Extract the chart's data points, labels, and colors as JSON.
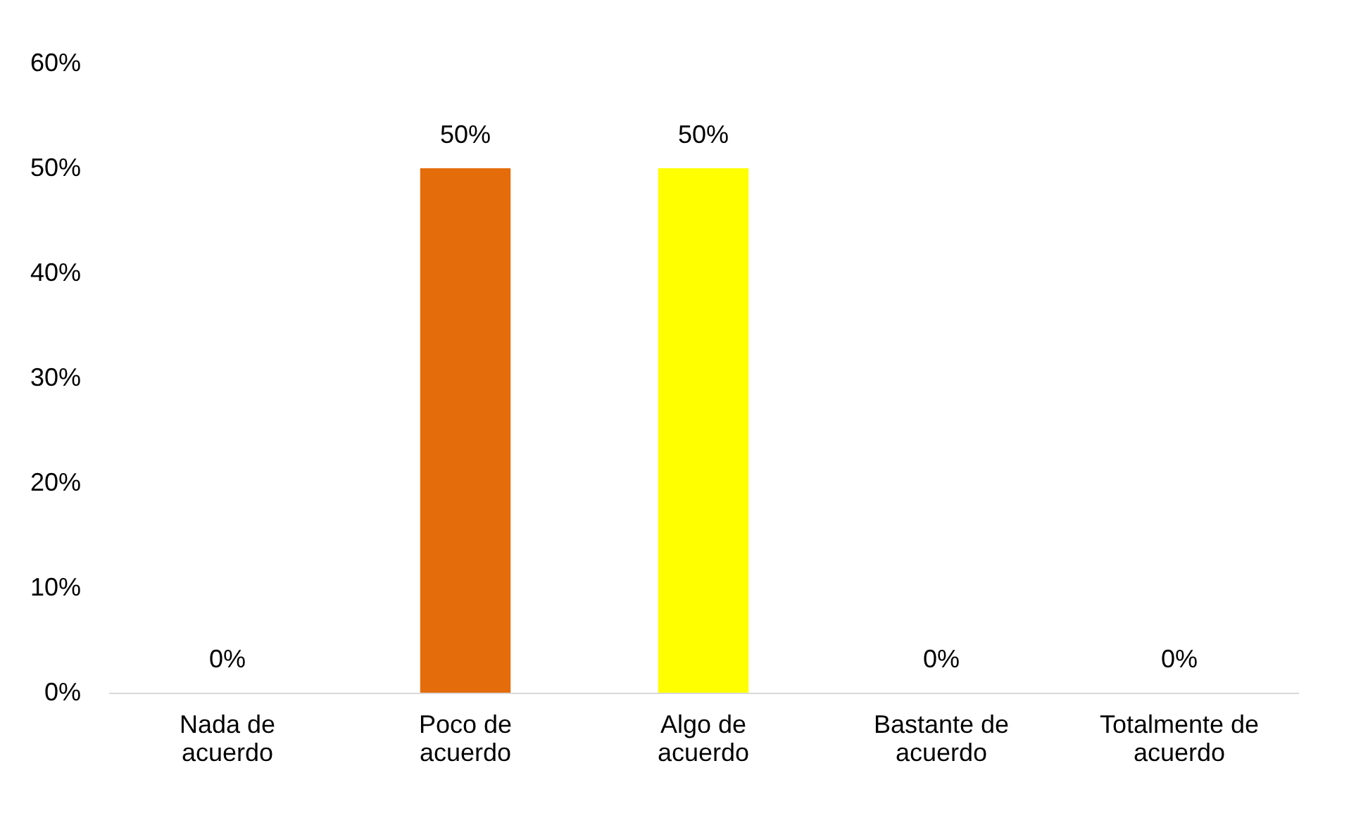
{
  "chart_data": {
    "type": "bar",
    "categories": [
      "Nada de acuerdo",
      "Poco de acuerdo",
      "Algo de acuerdo",
      "Bastante de acuerdo",
      "Totalmente de acuerdo"
    ],
    "values": [
      0,
      50,
      50,
      0,
      0
    ],
    "colors": [
      "#4472c4",
      "#e46c0a",
      "#ffff00",
      "#4472c4",
      "#4472c4"
    ],
    "value_labels": [
      "0%",
      "50%",
      "50%",
      "0%",
      "0%"
    ],
    "ylim": [
      0,
      60
    ],
    "yticks": [
      {
        "value": 0,
        "label": "0%"
      },
      {
        "value": 10,
        "label": "10%"
      },
      {
        "value": 20,
        "label": "20%"
      },
      {
        "value": 30,
        "label": "30%"
      },
      {
        "value": 40,
        "label": "40%"
      },
      {
        "value": 50,
        "label": "50%"
      },
      {
        "value": 60,
        "label": "60%"
      }
    ],
    "grid": false
  }
}
